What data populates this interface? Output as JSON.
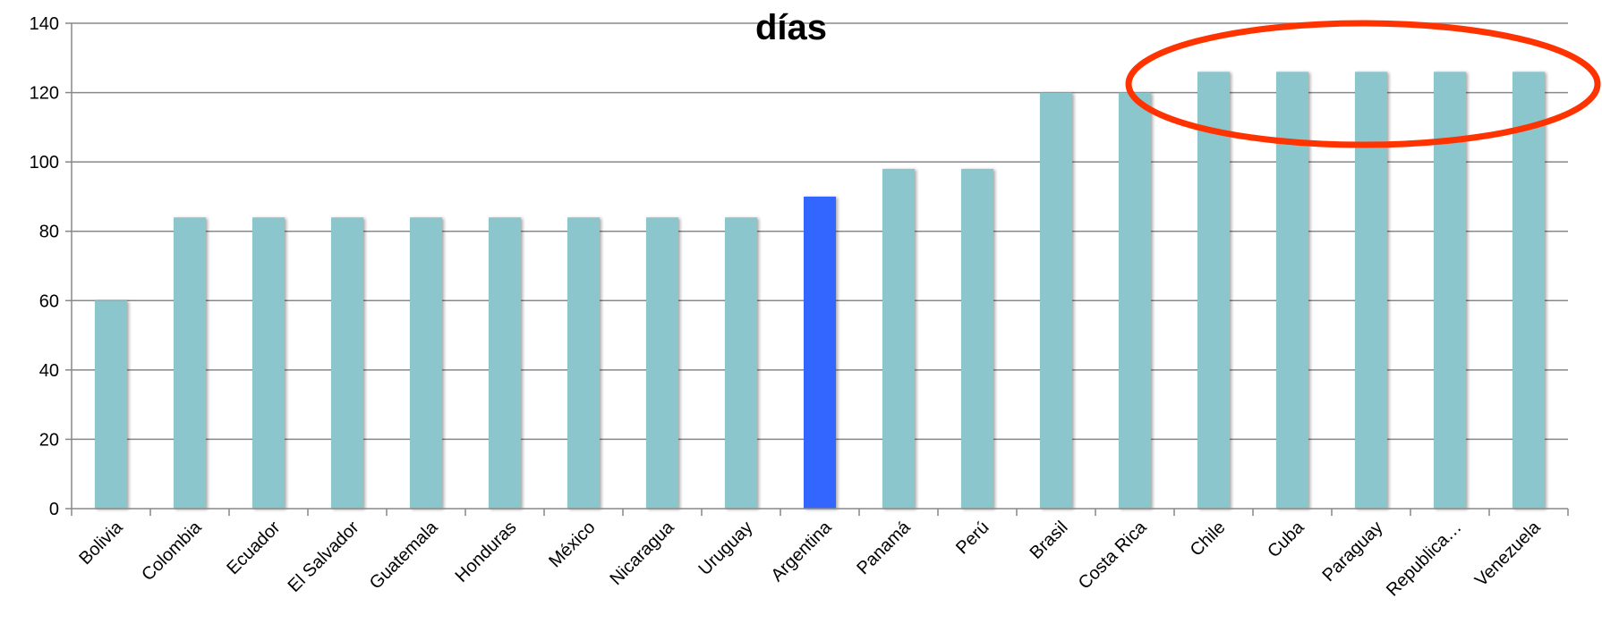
{
  "chart_data": {
    "type": "bar",
    "title": "días",
    "xlabel": "",
    "ylabel": "",
    "ylim": [
      0,
      140
    ],
    "yticks": [
      0,
      20,
      40,
      60,
      80,
      100,
      120,
      140
    ],
    "grid": true,
    "categories": [
      "Bolivia",
      "Colombia",
      "Ecuador",
      "El Salvador",
      "Guatemala",
      "Honduras",
      "México",
      "Nicaragua",
      "Uruguay",
      "Argentina",
      "Panamá",
      "Perú",
      "Brasil",
      "Costa Rica",
      "Chile",
      "Cuba",
      "Paraguay",
      "Republica…",
      "Venezuela"
    ],
    "values": [
      60,
      84,
      84,
      84,
      84,
      84,
      84,
      84,
      84,
      90,
      98,
      98,
      120,
      120,
      126,
      126,
      126,
      126,
      126
    ],
    "highlight_category": "Argentina",
    "annotation": "red ellipse around the 126-day group",
    "annotated_categories": [
      "Chile",
      "Cuba",
      "Paraguay",
      "Republica…",
      "Venezuela"
    ],
    "colors": {
      "bar": "#8cc6cd",
      "bar_highlight": "#3366ff",
      "annotation": "#ff3300",
      "grid": "#888888"
    }
  }
}
